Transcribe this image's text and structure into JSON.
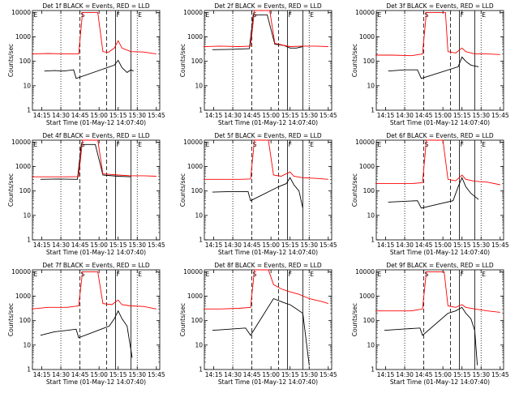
{
  "figure": {
    "background": "#ffffff",
    "xticks": [
      "14:15",
      "14:30",
      "14:45",
      "15:00",
      "15:15",
      "15:30",
      "15:45"
    ],
    "yticks": [
      "1",
      "10",
      "100",
      "1000",
      "10000"
    ],
    "ylabel": "Counts/sec",
    "xlabel": "Start Time (01-May-12 14:07:40)",
    "event_labels": [
      "E",
      "S",
      "F",
      "E"
    ],
    "colors": {
      "events": "#000000",
      "lld": "#ff0000"
    }
  },
  "chart_data": [
    {
      "type": "line",
      "title": "Det 1f BLACK = Events, RED = LLD",
      "xlabel": "Start Time (01-May-12 14:07:40)",
      "ylabel": "Counts/sec",
      "x_range": [
        "14:07:40",
        "15:47"
      ],
      "ylim": [
        1,
        12000
      ],
      "yscale": "log",
      "series": [
        {
          "name": "Events",
          "color": "#000000",
          "points": [
            [
              "14:17",
              40
            ],
            [
              "14:25",
              42
            ],
            [
              "14:32",
              40
            ],
            [
              "14:40",
              45
            ],
            [
              "14:42",
              20
            ],
            [
              "15:12",
              70
            ],
            [
              "15:15",
              110
            ],
            [
              "15:18",
              55
            ],
            [
              "15:22",
              35
            ],
            [
              "15:25",
              45
            ],
            [
              "15:27",
              40
            ]
          ]
        },
        {
          "name": "LLD",
          "color": "#ff0000",
          "points": [
            [
              "14:07",
              200
            ],
            [
              "14:20",
              210
            ],
            [
              "14:35",
              200
            ],
            [
              "14:44",
              200
            ],
            [
              "14:47",
              10000
            ],
            [
              "14:59",
              10000
            ],
            [
              "15:03",
              250
            ],
            [
              "15:07",
              230
            ],
            [
              "15:12",
              350
            ],
            [
              "15:15",
              700
            ],
            [
              "15:18",
              350
            ],
            [
              "15:25",
              250
            ],
            [
              "15:35",
              240
            ],
            [
              "15:45",
              200
            ]
          ]
        }
      ]
    },
    {
      "type": "line",
      "title": "Det 2f BLACK = Events, RED = LLD",
      "xlabel": "Start Time (01-May-12 14:07:40)",
      "ylabel": "Counts/sec",
      "x_range": [
        "14:07:40",
        "15:47"
      ],
      "ylim": [
        1,
        12000
      ],
      "yscale": "log",
      "series": [
        {
          "name": "Events",
          "color": "#000000",
          "points": [
            [
              "14:14",
              300
            ],
            [
              "14:28",
              310
            ],
            [
              "14:43",
              330
            ],
            [
              "14:46",
              8000
            ],
            [
              "14:57",
              8000
            ],
            [
              "15:03",
              500
            ],
            [
              "15:10",
              450
            ],
            [
              "15:15",
              350
            ],
            [
              "15:20",
              350
            ],
            [
              "15:25",
              400
            ]
          ]
        },
        {
          "name": "LLD",
          "color": "#ff0000",
          "points": [
            [
              "14:07",
              400
            ],
            [
              "14:20",
              420
            ],
            [
              "14:35",
              400
            ],
            [
              "14:44",
              420
            ],
            [
              "14:47",
              12000
            ],
            [
              "14:59",
              12000
            ],
            [
              "15:03",
              550
            ],
            [
              "15:10",
              450
            ],
            [
              "15:15",
              400
            ],
            [
              "15:25",
              420
            ],
            [
              "15:35",
              420
            ],
            [
              "15:45",
              400
            ]
          ]
        }
      ]
    },
    {
      "type": "line",
      "title": "Det 3f BLACK = Events, RED = LLD",
      "xlabel": "Start Time (01-May-12 14:07:40)",
      "ylabel": "Counts/sec",
      "x_range": [
        "14:07:40",
        "15:47"
      ],
      "ylim": [
        1,
        12000
      ],
      "yscale": "log",
      "series": [
        {
          "name": "Events",
          "color": "#000000",
          "points": [
            [
              "14:17",
              40
            ],
            [
              "14:30",
              45
            ],
            [
              "14:40",
              45
            ],
            [
              "14:43",
              20
            ],
            [
              "15:12",
              60
            ],
            [
              "15:15",
              150
            ],
            [
              "15:18",
              100
            ],
            [
              "15:22",
              70
            ],
            [
              "15:28",
              60
            ]
          ]
        },
        {
          "name": "LLD",
          "color": "#ff0000",
          "points": [
            [
              "14:07",
              180
            ],
            [
              "14:20",
              180
            ],
            [
              "14:35",
              170
            ],
            [
              "14:44",
              200
            ],
            [
              "14:47",
              10000
            ],
            [
              "15:02",
              10000
            ],
            [
              "15:04",
              250
            ],
            [
              "15:10",
              220
            ],
            [
              "15:15",
              350
            ],
            [
              "15:18",
              250
            ],
            [
              "15:25",
              200
            ],
            [
              "15:35",
              200
            ],
            [
              "15:45",
              190
            ]
          ]
        }
      ]
    },
    {
      "type": "line",
      "title": "Det 4f BLACK = Events, RED = LLD",
      "xlabel": "Start Time (01-May-12 14:07:40)",
      "ylabel": "Counts/sec",
      "x_range": [
        "14:07:40",
        "15:47"
      ],
      "ylim": [
        1,
        12000
      ],
      "yscale": "log",
      "series": [
        {
          "name": "Events",
          "color": "#000000",
          "points": [
            [
              "14:14",
              300
            ],
            [
              "14:28",
              310
            ],
            [
              "14:43",
              300
            ],
            [
              "14:46",
              8000
            ],
            [
              "14:57",
              8000
            ],
            [
              "15:03",
              450
            ],
            [
              "15:15",
              400
            ],
            [
              "15:25",
              380
            ]
          ]
        },
        {
          "name": "LLD",
          "color": "#ff0000",
          "points": [
            [
              "14:07",
              380
            ],
            [
              "14:20",
              380
            ],
            [
              "14:35",
              380
            ],
            [
              "14:44",
              390
            ],
            [
              "14:47",
              12000
            ],
            [
              "14:59",
              12000
            ],
            [
              "15:03",
              500
            ],
            [
              "15:15",
              450
            ],
            [
              "15:25",
              420
            ],
            [
              "15:35",
              420
            ],
            [
              "15:45",
              400
            ]
          ]
        }
      ]
    },
    {
      "type": "line",
      "title": "Det 5f BLACK = Events, RED = LLD",
      "xlabel": "Start Time (01-May-12 14:07:40)",
      "ylabel": "Counts/sec",
      "x_range": [
        "14:07:40",
        "15:47"
      ],
      "ylim": [
        1,
        12000
      ],
      "yscale": "log",
      "series": [
        {
          "name": "Events",
          "color": "#000000",
          "points": [
            [
              "14:14",
              90
            ],
            [
              "14:28",
              95
            ],
            [
              "14:42",
              95
            ],
            [
              "14:44",
              40
            ],
            [
              "15:06",
              150
            ],
            [
              "15:12",
              200
            ],
            [
              "15:15",
              350
            ],
            [
              "15:18",
              180
            ],
            [
              "15:22",
              100
            ],
            [
              "15:25",
              20
            ]
          ]
        },
        {
          "name": "LLD",
          "color": "#ff0000",
          "points": [
            [
              "14:07",
              300
            ],
            [
              "14:20",
              300
            ],
            [
              "14:35",
              300
            ],
            [
              "14:44",
              310
            ],
            [
              "14:47",
              12000
            ],
            [
              "14:58",
              12000
            ],
            [
              "15:02",
              450
            ],
            [
              "15:08",
              400
            ],
            [
              "15:15",
              600
            ],
            [
              "15:18",
              400
            ],
            [
              "15:25",
              350
            ],
            [
              "15:35",
              330
            ],
            [
              "15:45",
              300
            ]
          ]
        }
      ]
    },
    {
      "type": "line",
      "title": "Det 6f BLACK = Events, RED = LLD",
      "xlabel": "Start Time (01-May-12 14:07:40)",
      "ylabel": "Counts/sec",
      "x_range": [
        "14:07:40",
        "15:47"
      ],
      "ylim": [
        1,
        12000
      ],
      "yscale": "log",
      "series": [
        {
          "name": "Events",
          "color": "#000000",
          "points": [
            [
              "14:17",
              35
            ],
            [
              "14:30",
              38
            ],
            [
              "14:40",
              40
            ],
            [
              "14:43",
              20
            ],
            [
              "15:08",
              40
            ],
            [
              "15:12",
              150
            ],
            [
              "15:15",
              350
            ],
            [
              "15:18",
              150
            ],
            [
              "15:22",
              80
            ],
            [
              "15:28",
              45
            ]
          ]
        },
        {
          "name": "LLD",
          "color": "#ff0000",
          "points": [
            [
              "14:07",
              200
            ],
            [
              "14:20",
              200
            ],
            [
              "14:35",
              200
            ],
            [
              "14:44",
              220
            ],
            [
              "14:47",
              12000
            ],
            [
              "15:00",
              12000
            ],
            [
              "15:04",
              300
            ],
            [
              "15:10",
              260
            ],
            [
              "15:15",
              450
            ],
            [
              "15:18",
              300
            ],
            [
              "15:25",
              250
            ],
            [
              "15:35",
              230
            ],
            [
              "15:45",
              180
            ]
          ]
        }
      ]
    },
    {
      "type": "line",
      "title": "Det 7f BLACK = Events, RED = LLD",
      "xlabel": "Start Time (01-May-12 14:07:40)",
      "ylabel": "Counts/sec",
      "x_range": [
        "14:07:40",
        "15:47"
      ],
      "ylim": [
        1,
        12000
      ],
      "yscale": "log",
      "series": [
        {
          "name": "Events",
          "color": "#000000",
          "points": [
            [
              "14:14",
              25
            ],
            [
              "14:25",
              35
            ],
            [
              "14:35",
              40
            ],
            [
              "14:42",
              45
            ],
            [
              "14:44",
              20
            ],
            [
              "15:08",
              60
            ],
            [
              "15:12",
              120
            ],
            [
              "15:15",
              250
            ],
            [
              "15:18",
              120
            ],
            [
              "15:22",
              60
            ],
            [
              "15:26",
              3
            ]
          ]
        },
        {
          "name": "LLD",
          "color": "#ff0000",
          "points": [
            [
              "14:07",
              300
            ],
            [
              "14:20",
              350
            ],
            [
              "14:35",
              350
            ],
            [
              "14:44",
              400
            ],
            [
              "14:47",
              10000
            ],
            [
              "14:59",
              10000
            ],
            [
              "15:03",
              500
            ],
            [
              "15:10",
              450
            ],
            [
              "15:15",
              700
            ],
            [
              "15:18",
              450
            ],
            [
              "15:25",
              400
            ],
            [
              "15:35",
              380
            ],
            [
              "15:45",
              300
            ]
          ]
        }
      ]
    },
    {
      "type": "line",
      "title": "Det 8f BLACK = Events, RED = LLD",
      "xlabel": "Start Time (01-May-12 14:07:40)",
      "ylabel": "Counts/sec",
      "x_range": [
        "14:07:40",
        "15:47"
      ],
      "ylim": [
        1,
        12000
      ],
      "yscale": "log",
      "series": [
        {
          "name": "Events",
          "color": "#000000",
          "points": [
            [
              "14:14",
              40
            ],
            [
              "14:28",
              45
            ],
            [
              "14:40",
              50
            ],
            [
              "14:44",
              25
            ],
            [
              "15:02",
              800
            ],
            [
              "15:08",
              600
            ],
            [
              "15:12",
              500
            ],
            [
              "15:15",
              450
            ],
            [
              "15:20",
              300
            ],
            [
              "15:25",
              200
            ],
            [
              "15:30",
              1.5
            ]
          ]
        },
        {
          "name": "LLD",
          "color": "#ff0000",
          "points": [
            [
              "14:07",
              300
            ],
            [
              "14:20",
              300
            ],
            [
              "14:35",
              320
            ],
            [
              "14:44",
              350
            ],
            [
              "14:47",
              12000
            ],
            [
              "14:58",
              12000
            ],
            [
              "15:02",
              3000
            ],
            [
              "15:08",
              2000
            ],
            [
              "15:15",
              1500
            ],
            [
              "15:22",
              1200
            ],
            [
              "15:30",
              800
            ],
            [
              "15:40",
              600
            ],
            [
              "15:45",
              500
            ]
          ]
        }
      ]
    },
    {
      "type": "line",
      "title": "Det 9f BLACK = Events, RED = LLD",
      "xlabel": "Start Time (01-May-12 14:07:40)",
      "ylabel": "Counts/sec",
      "x_range": [
        "14:07:40",
        "15:47"
      ],
      "ylim": [
        1,
        12000
      ],
      "yscale": "log",
      "series": [
        {
          "name": "Events",
          "color": "#000000",
          "points": [
            [
              "14:14",
              40
            ],
            [
              "14:28",
              45
            ],
            [
              "14:42",
              50
            ],
            [
              "14:44",
              25
            ],
            [
              "15:04",
              200
            ],
            [
              "15:10",
              250
            ],
            [
              "15:15",
              350
            ],
            [
              "15:18",
              200
            ],
            [
              "15:22",
              120
            ],
            [
              "15:25",
              40
            ],
            [
              "15:27",
              1.5
            ]
          ]
        },
        {
          "name": "LLD",
          "color": "#ff0000",
          "points": [
            [
              "14:07",
              250
            ],
            [
              "14:20",
              250
            ],
            [
              "14:35",
              250
            ],
            [
              "14:44",
              300
            ],
            [
              "14:47",
              10000
            ],
            [
              "15:01",
              10000
            ],
            [
              "15:04",
              400
            ],
            [
              "15:10",
              350
            ],
            [
              "15:15",
              450
            ],
            [
              "15:18",
              350
            ],
            [
              "15:25",
              300
            ],
            [
              "15:35",
              250
            ],
            [
              "15:45",
              220
            ]
          ]
        }
      ]
    }
  ]
}
